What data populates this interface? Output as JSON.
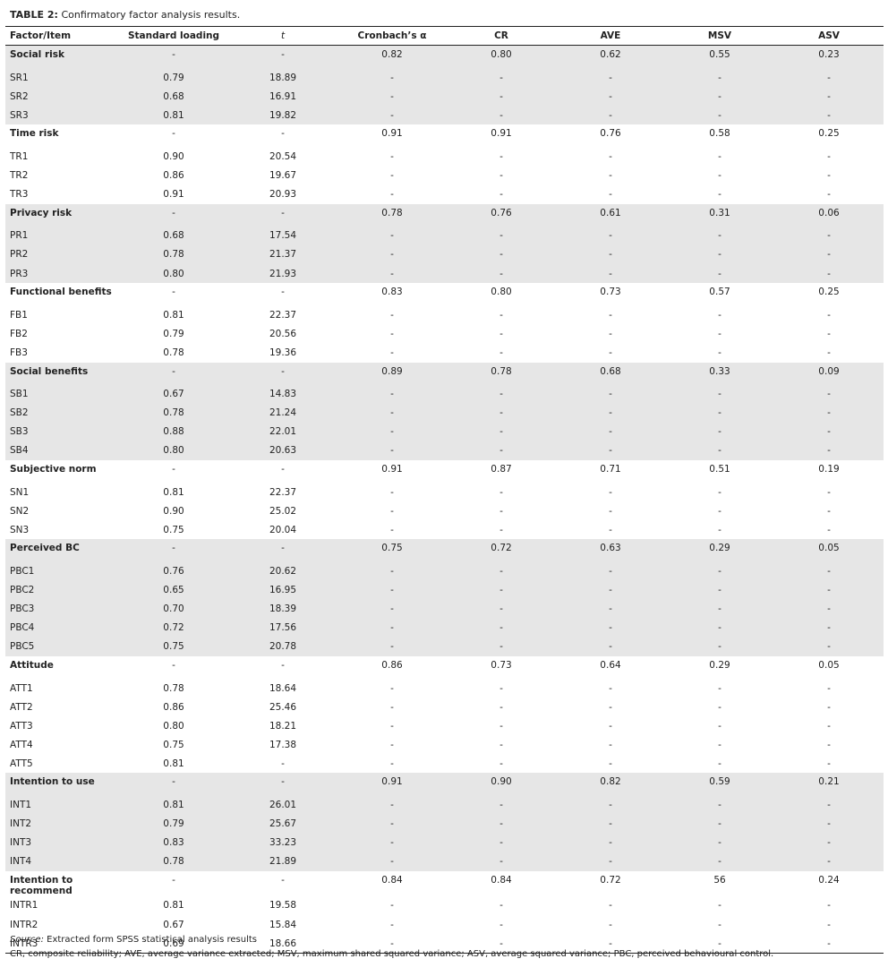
{
  "caption": {
    "label": "TABLE 2:",
    "text": "Confirmatory factor analysis results."
  },
  "table": {
    "headers": [
      "Factor/Item",
      "Standard loading",
      "t",
      "Cronbach’s α",
      "CR",
      "AVE",
      "MSV",
      "ASV"
    ],
    "groups": [
      {
        "rows": [
          [
            "Social risk",
            "-",
            "-",
            "0.82",
            "0.80",
            "0.62",
            "0.55",
            "0.23"
          ],
          [
            "SR1",
            "0.79",
            "18.89",
            "-",
            "-",
            "-",
            "-",
            "-"
          ],
          [
            "SR2",
            "0.68",
            "16.91",
            "-",
            "-",
            "-",
            "-",
            "-"
          ],
          [
            "SR3",
            "0.81",
            "19.82",
            "-",
            "-",
            "-",
            "-",
            "-"
          ]
        ]
      },
      {
        "rows": [
          [
            "Time risk",
            "-",
            "-",
            "0.91",
            "0.91",
            "0.76",
            "0.58",
            "0.25"
          ],
          [
            "TR1",
            "0.90",
            "20.54",
            "-",
            "-",
            "-",
            "-",
            "-"
          ],
          [
            "TR2",
            "0.86",
            "19.67",
            "-",
            "-",
            "-",
            "-",
            "-"
          ],
          [
            "TR3",
            "0.91",
            "20.93",
            "-",
            "-",
            "-",
            "-",
            "-"
          ]
        ]
      },
      {
        "rows": [
          [
            "Privacy risk",
            "-",
            "-",
            "0.78",
            "0.76",
            "0.61",
            "0.31",
            "0.06"
          ],
          [
            "PR1",
            "0.68",
            "17.54",
            "-",
            "-",
            "-",
            "-",
            "-"
          ],
          [
            "PR2",
            "0.78",
            "21.37",
            "-",
            "-",
            "-",
            "-",
            "-"
          ],
          [
            "PR3",
            "0.80",
            "21.93",
            "-",
            "-",
            "-",
            "-",
            "-"
          ]
        ]
      },
      {
        "rows": [
          [
            "Functional benefits",
            "-",
            "-",
            "0.83",
            "0.80",
            "0.73",
            "0.57",
            "0.25"
          ],
          [
            "FB1",
            "0.81",
            "22.37",
            "-",
            "-",
            "-",
            "-",
            "-"
          ],
          [
            "FB2",
            "0.79",
            "20.56",
            "-",
            "-",
            "-",
            "-",
            "-"
          ],
          [
            "FB3",
            "0.78",
            "19.36",
            "-",
            "-",
            "-",
            "-",
            "-"
          ]
        ]
      },
      {
        "rows": [
          [
            "Social benefits",
            "-",
            "-",
            "0.89",
            "0.78",
            "0.68",
            "0.33",
            "0.09"
          ],
          [
            "SB1",
            "0.67",
            "14.83",
            "-",
            "-",
            "-",
            "-",
            "-"
          ],
          [
            "SB2",
            "0.78",
            "21.24",
            "-",
            "-",
            "-",
            "-",
            "-"
          ],
          [
            "SB3",
            "0.88",
            "22.01",
            "-",
            "-",
            "-",
            "-",
            "-"
          ],
          [
            "SB4",
            "0.80",
            "20.63",
            "-",
            "-",
            "-",
            "-",
            "-"
          ]
        ]
      },
      {
        "rows": [
          [
            "Subjective norm",
            "-",
            "-",
            "0.91",
            "0.87",
            "0.71",
            "0.51",
            "0.19"
          ],
          [
            "SN1",
            "0.81",
            "22.37",
            "-",
            "-",
            "-",
            "-",
            "-"
          ],
          [
            "SN2",
            "0.90",
            "25.02",
            "-",
            "-",
            "-",
            "-",
            "-"
          ],
          [
            "SN3",
            "0.75",
            "20.04",
            "-",
            "-",
            "-",
            "-",
            "-"
          ]
        ]
      },
      {
        "rows": [
          [
            "Perceived BC",
            "-",
            "-",
            "0.75",
            "0.72",
            "0.63",
            "0.29",
            "0.05"
          ],
          [
            "PBC1",
            "0.76",
            "20.62",
            "-",
            "-",
            "-",
            "-",
            "-"
          ],
          [
            "PBC2",
            "0.65",
            "16.95",
            "-",
            "-",
            "-",
            "-",
            "-"
          ],
          [
            "PBC3",
            "0.70",
            "18.39",
            "-",
            "-",
            "-",
            "-",
            "-"
          ],
          [
            "PBC4",
            "0.72",
            "17.56",
            "-",
            "-",
            "-",
            "-",
            "-"
          ],
          [
            "PBC5",
            "0.75",
            "20.78",
            "-",
            "-",
            "-",
            "-",
            "-"
          ]
        ]
      },
      {
        "rows": [
          [
            "Attitude",
            "-",
            "-",
            "0.86",
            "0.73",
            "0.64",
            "0.29",
            "0.05"
          ],
          [
            "ATT1",
            "0.78",
            "18.64",
            "-",
            "-",
            "-",
            "-",
            "-"
          ],
          [
            "ATT2",
            "0.86",
            "25.46",
            "-",
            "-",
            "-",
            "-",
            "-"
          ],
          [
            "ATT3",
            "0.80",
            "18.21",
            "-",
            "-",
            "-",
            "-",
            "-"
          ],
          [
            "ATT4",
            "0.75",
            "17.38",
            "-",
            "-",
            "-",
            "-",
            "-"
          ],
          [
            "ATT5",
            "0.81",
            "-",
            "-",
            "-",
            "-",
            "-",
            "-"
          ]
        ]
      },
      {
        "rows": [
          [
            "Intention to use",
            "-",
            "-",
            "0.91",
            "0.90",
            "0.82",
            "0.59",
            "0.21"
          ],
          [
            "INT1",
            "0.81",
            "26.01",
            "-",
            "-",
            "-",
            "-",
            "-"
          ],
          [
            "INT2",
            "0.79",
            "25.67",
            "-",
            "-",
            "-",
            "-",
            "-"
          ],
          [
            "INT3",
            "0.83",
            "33.23",
            "-",
            "-",
            "-",
            "-",
            "-"
          ],
          [
            "INT4",
            "0.78",
            "21.89",
            "-",
            "-",
            "-",
            "-",
            "-"
          ]
        ]
      },
      {
        "rows": [
          [
            "Intention to recommend",
            "-",
            "-",
            "0.84",
            "0.84",
            "0.72",
            "56",
            "0.24"
          ],
          [
            "INTR1",
            "0.81",
            "19.58",
            "-",
            "-",
            "-",
            "-",
            "-"
          ],
          [
            "INTR2",
            "0.67",
            "15.84",
            "-",
            "-",
            "-",
            "-",
            "-"
          ],
          [
            "INTR3",
            "0.69",
            "18.66",
            "-",
            "-",
            "-",
            "-",
            "-"
          ]
        ]
      }
    ]
  },
  "notes": {
    "source_label": "Source:",
    "source": "Extracted form SPSS statistical analysis results",
    "abbreviations": "CR, composite reliability; AVE, average variance extracted; MSV, maximum shared squared variance; ASV, average squared variance; PBC, perceived behavioural control."
  }
}
